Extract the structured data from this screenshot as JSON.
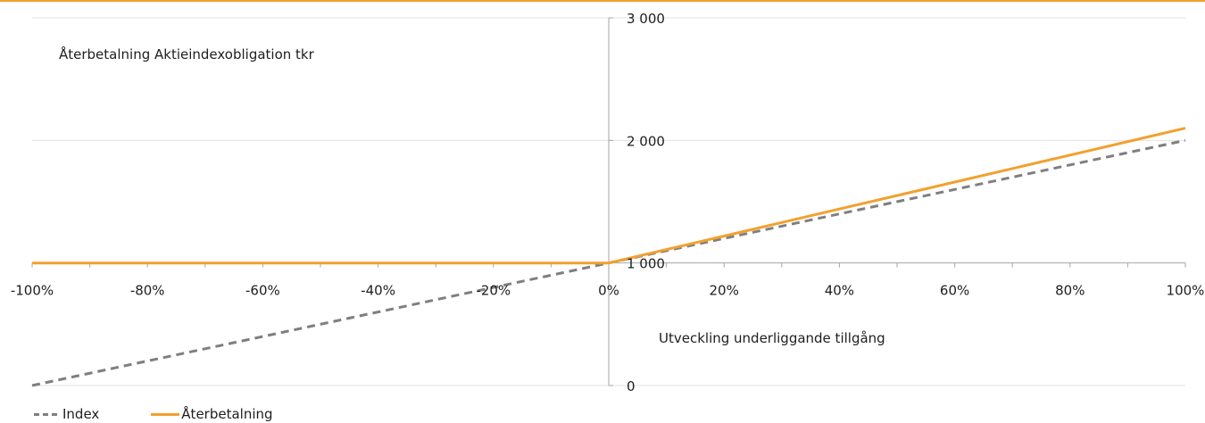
{
  "colors": {
    "accent_rule": "#f3a02e",
    "index": "#7f7f7f",
    "aterbetalning": "#f3a02e",
    "grid": "#e3e3e3",
    "axis": "#a6a6a6"
  },
  "chart_data": {
    "type": "line",
    "title": "Återbetalning Aktieindexobligation tkr",
    "xlabel": "Utveckling underliggande tillgång",
    "ylabel": "",
    "x": [
      -100,
      -80,
      -60,
      -40,
      -20,
      0,
      20,
      40,
      60,
      80,
      100
    ],
    "x_tick_labels": [
      "-100%",
      "-80%",
      "-60%",
      "-40%",
      "-20%",
      "0%",
      "20%",
      "40%",
      "60%",
      "80%",
      "100%"
    ],
    "y_tick_labels": [
      "0",
      "1 000",
      "2 000",
      "3 000"
    ],
    "y_ticks": [
      0,
      1000,
      2000,
      3000
    ],
    "xlim": [
      -100,
      100
    ],
    "ylim": [
      0,
      3000
    ],
    "grid": "horizontal",
    "legend_position": "bottom-left",
    "series": [
      {
        "name": "Index",
        "style": "dashed",
        "color": "#7f7f7f",
        "values": [
          0,
          200,
          400,
          600,
          800,
          1000,
          1200,
          1400,
          1600,
          1800,
          2000
        ]
      },
      {
        "name": "Återbetalning",
        "style": "solid",
        "color": "#f3a02e",
        "values": [
          1000,
          1000,
          1000,
          1000,
          1000,
          1000,
          1220,
          1440,
          1660,
          1880,
          2100
        ]
      }
    ]
  }
}
